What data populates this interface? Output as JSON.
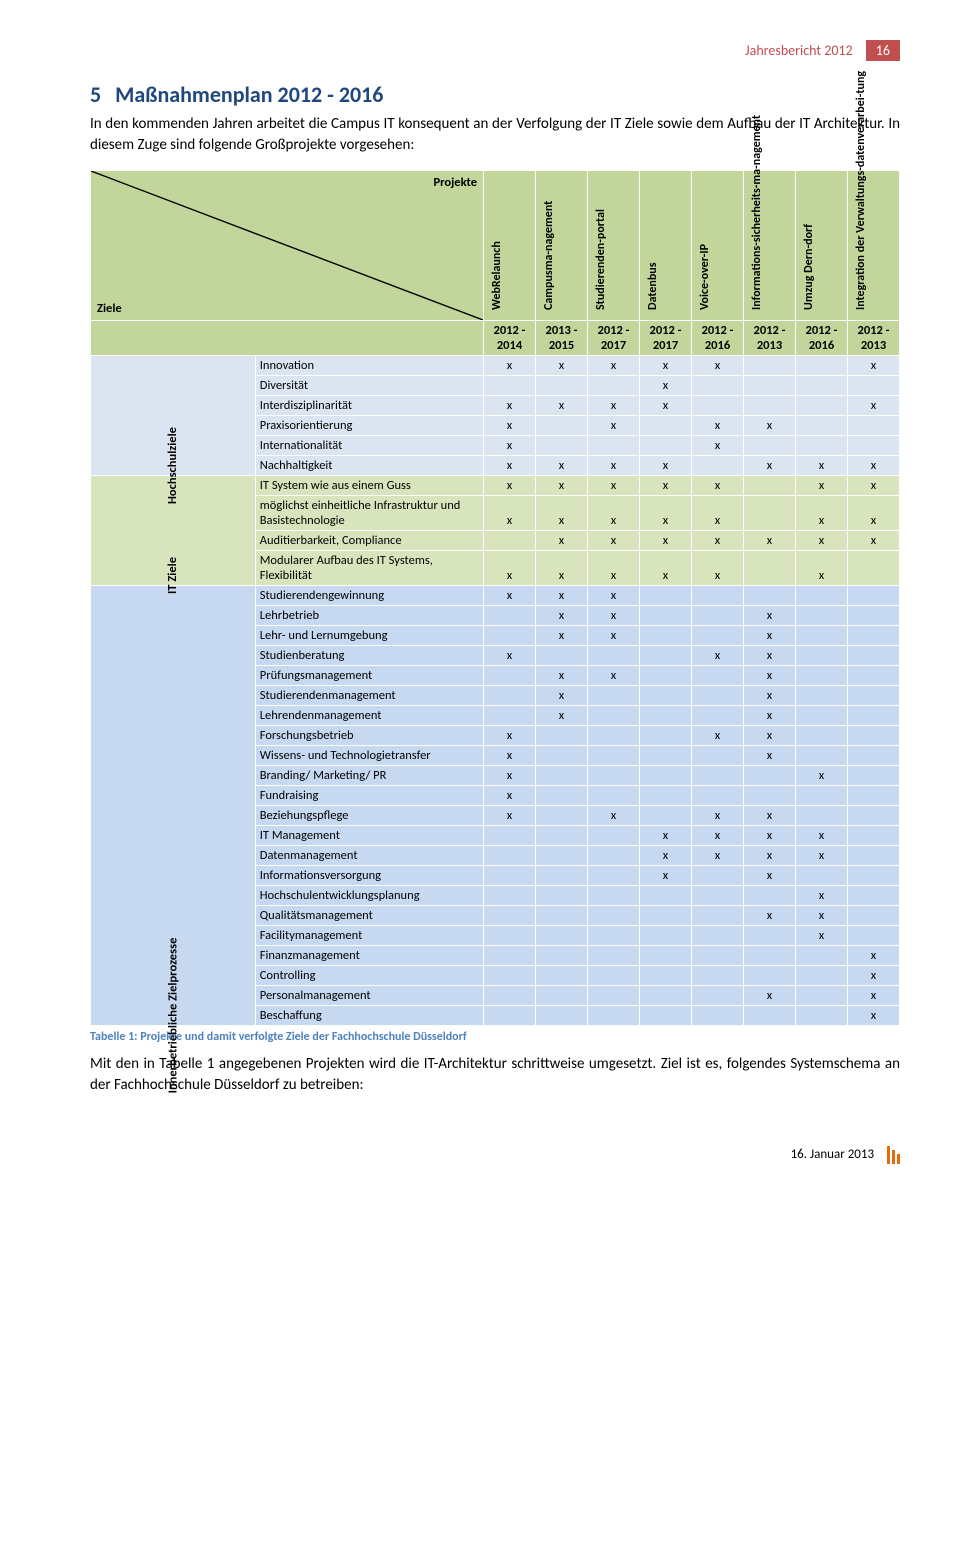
{
  "header": {
    "title": "Jahresbericht 2012",
    "page_num": "16"
  },
  "section": {
    "num": "5",
    "title": "Maßnahmenplan 2012 - 2016",
    "intro": "In den kommenden Jahren arbeitet die Campus IT konsequent an der Verfolgung der IT Ziele sowie dem Aufbau der IT Architektur. In diesem Zuge sind folgende Großprojekte vorgesehen:"
  },
  "corner": {
    "projects": "Projekte",
    "goals": "Ziele"
  },
  "columns": [
    {
      "label": "WebRelaunch",
      "range": "2012 - 2014"
    },
    {
      "label": "Campusma-nagement",
      "range": "2013 - 2015"
    },
    {
      "label": "Studierenden-portal",
      "range": "2012 - 2017"
    },
    {
      "label": "Datenbus",
      "range": "2012 - 2017"
    },
    {
      "label": "Voice-over-IP",
      "range": "2012 - 2016"
    },
    {
      "label": "Informations-sicherheits-ma-nagement",
      "range": "2012 - 2013"
    },
    {
      "label": "Umzug Dern-dorf",
      "range": "2012 - 2016"
    },
    {
      "label": "Integration der Verwaltungs-datenverarbei-tung",
      "range": "2012 - 2013"
    }
  ],
  "groups": [
    {
      "label": "Hochschulziele",
      "cls": "gHoch",
      "rows": [
        {
          "label": "Innovation",
          "marks": [
            "x",
            "x",
            "x",
            "x",
            "x",
            "",
            "",
            "x"
          ]
        },
        {
          "label": "Diversität",
          "marks": [
            "",
            "",
            "",
            "x",
            "",
            "",
            "",
            ""
          ]
        },
        {
          "label": "Interdisziplinarität",
          "marks": [
            "x",
            "x",
            "x",
            "x",
            "",
            "",
            "",
            "x"
          ]
        },
        {
          "label": "Praxisorientierung",
          "marks": [
            "x",
            "",
            "x",
            "",
            "x",
            "x",
            "",
            ""
          ]
        },
        {
          "label": "Internationalität",
          "marks": [
            "x",
            "",
            "",
            "",
            "x",
            "",
            "",
            ""
          ]
        },
        {
          "label": "Nachhaltigkeit",
          "marks": [
            "x",
            "x",
            "x",
            "x",
            "",
            "x",
            "x",
            "x"
          ]
        }
      ]
    },
    {
      "label": "IT Ziele",
      "cls": "gIT",
      "rows": [
        {
          "label": "IT System wie aus einem Guss",
          "marks": [
            "x",
            "x",
            "x",
            "x",
            "x",
            "",
            "x",
            "x"
          ]
        },
        {
          "label": "möglichst einheitliche Infrastruktur und Basistechnologie",
          "marks": [
            "x",
            "x",
            "x",
            "x",
            "x",
            "",
            "x",
            "x"
          ]
        },
        {
          "label": "Auditierbarkeit, Compliance",
          "marks": [
            "",
            "x",
            "x",
            "x",
            "x",
            "x",
            "x",
            "x"
          ]
        },
        {
          "label": "Modularer Aufbau des IT Systems, Flexibilität",
          "marks": [
            "x",
            "x",
            "x",
            "x",
            "x",
            "",
            "x",
            ""
          ]
        }
      ]
    },
    {
      "label": "Innerbetriebliche Zielprozesse",
      "cls": "gInner",
      "rows": [
        {
          "label": "Studierendengewinnung",
          "marks": [
            "x",
            "x",
            "x",
            "",
            "",
            "",
            "",
            ""
          ]
        },
        {
          "label": "Lehrbetrieb",
          "marks": [
            "",
            "x",
            "x",
            "",
            "",
            "x",
            "",
            ""
          ]
        },
        {
          "label": "Lehr- und Lernumgebung",
          "marks": [
            "",
            "x",
            "x",
            "",
            "",
            "x",
            "",
            ""
          ]
        },
        {
          "label": "Studienberatung",
          "marks": [
            "x",
            "",
            "",
            "",
            "x",
            "x",
            "",
            ""
          ]
        },
        {
          "label": "Prüfungsmanagement",
          "marks": [
            "",
            "x",
            "x",
            "",
            "",
            "x",
            "",
            ""
          ]
        },
        {
          "label": "Studierendenmanagement",
          "marks": [
            "",
            "x",
            "",
            "",
            "",
            "x",
            "",
            ""
          ]
        },
        {
          "label": "Lehrendenmanagement",
          "marks": [
            "",
            "x",
            "",
            "",
            "",
            "x",
            "",
            ""
          ]
        },
        {
          "label": "Forschungsbetrieb",
          "marks": [
            "x",
            "",
            "",
            "",
            "x",
            "x",
            "",
            ""
          ]
        },
        {
          "label": "Wissens- und Technologietransfer",
          "marks": [
            "x",
            "",
            "",
            "",
            "",
            "x",
            "",
            ""
          ]
        },
        {
          "label": "Branding/ Marketing/ PR",
          "marks": [
            "x",
            "",
            "",
            "",
            "",
            "",
            "x",
            ""
          ]
        },
        {
          "label": "Fundraising",
          "marks": [
            "x",
            "",
            "",
            "",
            "",
            "",
            "",
            ""
          ]
        },
        {
          "label": "Beziehungspflege",
          "marks": [
            "x",
            "",
            "x",
            "",
            "x",
            "x",
            "",
            ""
          ]
        },
        {
          "label": "IT Management",
          "marks": [
            "",
            "",
            "",
            "x",
            "x",
            "x",
            "x",
            ""
          ]
        },
        {
          "label": "Datenmanagement",
          "marks": [
            "",
            "",
            "",
            "x",
            "x",
            "x",
            "x",
            ""
          ]
        },
        {
          "label": "Informationsversorgung",
          "marks": [
            "",
            "",
            "",
            "x",
            "",
            "x",
            "",
            ""
          ]
        },
        {
          "label": "Hochschulentwicklungsplanung",
          "marks": [
            "",
            "",
            "",
            "",
            "",
            "",
            "x",
            ""
          ]
        },
        {
          "label": "Qualitätsmanagement",
          "marks": [
            "",
            "",
            "",
            "",
            "",
            "x",
            "x",
            ""
          ]
        },
        {
          "label": "Facilitymanagement",
          "marks": [
            "",
            "",
            "",
            "",
            "",
            "",
            "x",
            ""
          ]
        },
        {
          "label": "Finanzmanagement",
          "marks": [
            "",
            "",
            "",
            "",
            "",
            "",
            "",
            "x"
          ]
        },
        {
          "label": "Controlling",
          "marks": [
            "",
            "",
            "",
            "",
            "",
            "",
            "",
            "x"
          ]
        },
        {
          "label": "Personalmanagement",
          "marks": [
            "",
            "",
            "",
            "",
            "",
            "x",
            "",
            "x"
          ]
        },
        {
          "label": "Beschaffung",
          "marks": [
            "",
            "",
            "",
            "",
            "",
            "",
            "",
            "x"
          ]
        }
      ]
    }
  ],
  "caption": "Tabelle 1: Projekte und damit verfolgte Ziele der Fachhochschule Düsseldorf",
  "after": "Mit den in Tabelle 1 angegebenen Projekten wird die IT-Architektur schrittweise umgesetzt. Ziel ist es, folgendes Systemschema an der Fachhochschule Düsseldorf zu betreiben:",
  "footer_date": "16. Januar 2013",
  "style": {
    "accent": "#c0504d",
    "heading": "#1f497d",
    "hdr_bg": "#c2d69b",
    "group_colors": {
      "gHoch": "#dbe5f1",
      "gIT": "#d7e4bc",
      "gInner": "#c6d9f1"
    }
  }
}
